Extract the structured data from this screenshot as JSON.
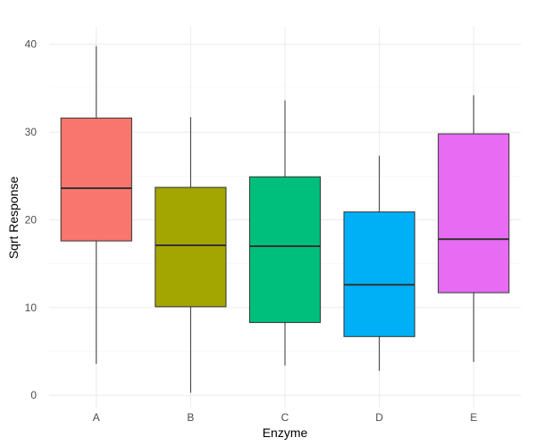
{
  "chart_data": {
    "type": "boxplot",
    "xlabel": "Enzyme",
    "ylabel": "Sqrt Response",
    "ylim": [
      -1.5,
      42
    ],
    "yticks": [
      0,
      10,
      20,
      30,
      40
    ],
    "yticklabels": [
      "0",
      "10",
      "20",
      "30",
      "40"
    ],
    "grid": true,
    "legend": "none",
    "categories": [
      "A",
      "B",
      "C",
      "D",
      "E"
    ],
    "boxes": [
      {
        "category": "A",
        "min": 3.6,
        "q1": 17.6,
        "median": 23.6,
        "q3": 31.6,
        "max": 39.8,
        "color": "#F8766D"
      },
      {
        "category": "B",
        "min": 0.3,
        "q1": 10.1,
        "median": 17.1,
        "q3": 23.7,
        "max": 31.7,
        "color": "#A3A500"
      },
      {
        "category": "C",
        "min": 3.4,
        "q1": 8.3,
        "median": 17.0,
        "q3": 24.9,
        "max": 33.6,
        "color": "#00BF7D"
      },
      {
        "category": "D",
        "min": 2.8,
        "q1": 6.7,
        "median": 12.6,
        "q3": 20.9,
        "max": 27.3,
        "color": "#00B0F6"
      },
      {
        "category": "E",
        "min": 3.8,
        "q1": 11.7,
        "median": 17.8,
        "q3": 29.8,
        "max": 34.2,
        "color": "#E76BF3"
      }
    ]
  }
}
